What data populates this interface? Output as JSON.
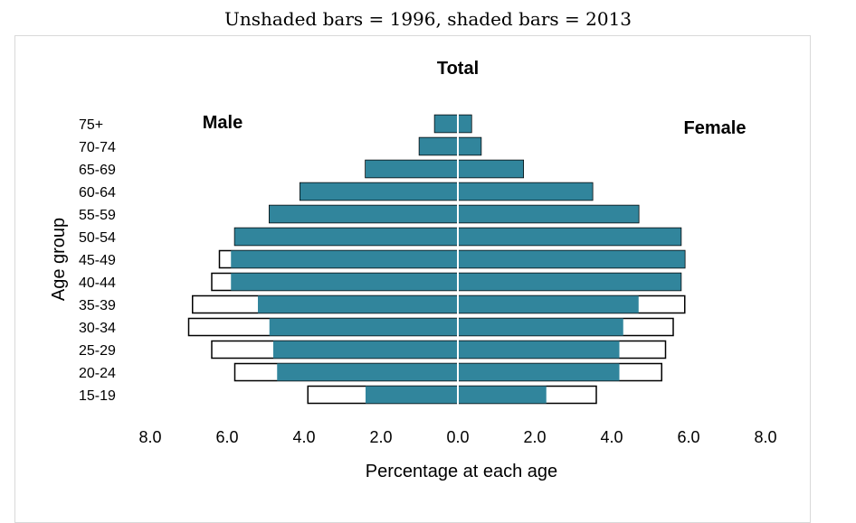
{
  "caption": "Unshaded bars = 1996, shaded bars = 2013",
  "chart_data": {
    "type": "bar",
    "orientation": "horizontal",
    "subtype": "population-pyramid",
    "title": "Total",
    "left_label": "Male",
    "right_label": "Female",
    "xlabel": "Percentage at each age",
    "ylabel": "Age group",
    "xlim": [
      -8,
      8
    ],
    "xticks": [
      "8.0",
      "6.0",
      "4.0",
      "2.0",
      "0.0",
      "2.0",
      "4.0",
      "6.0",
      "8.0"
    ],
    "categories": [
      "15-19",
      "20-24",
      "25-29",
      "30-34",
      "35-39",
      "40-44",
      "45-49",
      "50-54",
      "55-59",
      "60-64",
      "65-69",
      "70-74",
      "75+"
    ],
    "series": [
      {
        "name": "1996",
        "style": "unshaded",
        "male": [
          3.9,
          5.8,
          6.4,
          7.0,
          6.9,
          6.4,
          6.2,
          5.8,
          4.9,
          4.1,
          2.4,
          1.0,
          0.6
        ],
        "female": [
          3.6,
          5.3,
          5.4,
          5.6,
          5.9,
          5.8,
          5.9,
          5.8,
          4.7,
          3.5,
          1.7,
          0.6,
          0.35
        ]
      },
      {
        "name": "2013",
        "style": "shaded",
        "male": [
          2.4,
          4.7,
          4.8,
          4.9,
          5.2,
          5.9,
          5.9,
          5.8,
          4.9,
          4.1,
          2.4,
          1.0,
          0.6
        ],
        "female": [
          2.3,
          4.2,
          4.2,
          4.3,
          4.7,
          5.8,
          5.9,
          5.8,
          4.7,
          3.5,
          1.7,
          0.6,
          0.35
        ]
      }
    ],
    "colors": {
      "shaded": "#31859c",
      "unshaded": "#ffffff",
      "bar_outline": "#000000",
      "center_line": "#ffffff"
    },
    "grid": false,
    "legend": "none"
  }
}
